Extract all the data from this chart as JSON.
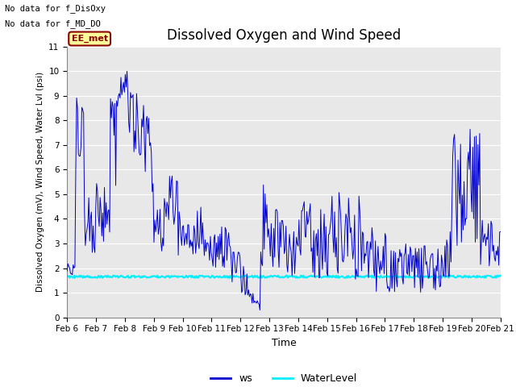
{
  "title": "Dissolved Oxygen and Wind Speed",
  "ylabel": "Dissolved Oxygen (mV), Wind Speed, Water Lvl (psi)",
  "xlabel": "Time",
  "ylim": [
    0.0,
    11.0
  ],
  "yticks": [
    0.0,
    1.0,
    2.0,
    3.0,
    4.0,
    5.0,
    6.0,
    7.0,
    8.0,
    9.0,
    10.0,
    11.0
  ],
  "xtick_labels": [
    "Feb 6",
    "Feb 7",
    "Feb 8",
    "Feb 9",
    "Feb 10",
    "Feb 11",
    "Feb 12",
    "Feb 13",
    "Feb 14",
    "Feb 15",
    "Feb 16",
    "Feb 17",
    "Feb 18",
    "Feb 19",
    "Feb 20",
    "Feb 21"
  ],
  "annotations": [
    "No data for f_DisOxy",
    "No data for f_MD_DO"
  ],
  "box_label": "EE_met",
  "ws_color": "#0000cc",
  "wl_color": "#00eeff",
  "bg_color": "#e8e8e8",
  "legend_ws": "ws",
  "legend_wl": "WaterLevel",
  "water_level_value": 1.65,
  "num_points": 500,
  "title_fontsize": 12,
  "tick_fontsize": 7.5,
  "ylabel_fontsize": 7.5,
  "xlabel_fontsize": 9
}
